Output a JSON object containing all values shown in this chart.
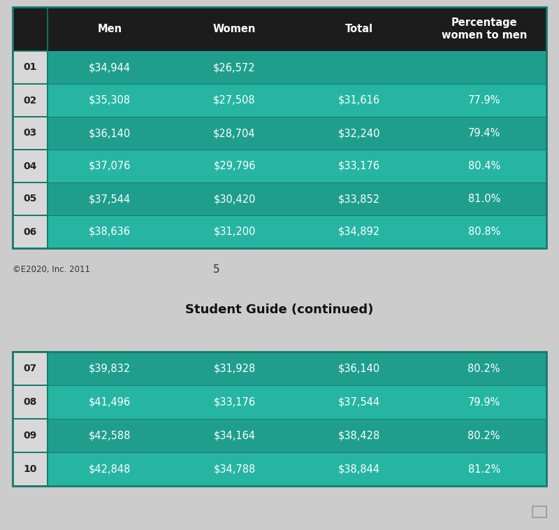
{
  "header": [
    "Men",
    "Women",
    "Total",
    "Percentage\nwomen to men"
  ],
  "table1_rows": [
    [
      "01",
      "$34,944",
      "$26,572",
      "",
      ""
    ],
    [
      "02",
      "$35,308",
      "$27,508",
      "$31,616",
      "77.9%"
    ],
    [
      "03",
      "$36,140",
      "$28,704",
      "$32,240",
      "79.4%"
    ],
    [
      "04",
      "$37,076",
      "$29,796",
      "$33,176",
      "80.4%"
    ],
    [
      "05",
      "$37,544",
      "$30,420",
      "$33,852",
      "81.0%"
    ],
    [
      "06",
      "$38,636",
      "$31,200",
      "$34,892",
      "80.8%"
    ]
  ],
  "table2_rows": [
    [
      "07",
      "$39,832",
      "$31,928",
      "$36,140",
      "80.2%"
    ],
    [
      "08",
      "$41,496",
      "$33,176",
      "$37,544",
      "79.9%"
    ],
    [
      "09",
      "$42,588",
      "$34,164",
      "$38,428",
      "80.2%"
    ],
    [
      "10",
      "$42,848",
      "$34,788",
      "$38,844",
      "81.2%"
    ]
  ],
  "footer_text": "©E2020, Inc. 2011",
  "page_number": "5",
  "subtitle": "Student Guide (continued)",
  "bg_color": "#cccccc",
  "header_bg": "#1c1c1c",
  "header_text_color": "#ffffff",
  "row_color_even": "#1f9e8e",
  "row_color_odd": "#26b5a3",
  "row_text_color": "#ffffff",
  "label_bg": "#d8d8d8",
  "label_text_color": "#222222",
  "border_color": "#157a6e",
  "footer_color": "#333333",
  "subtitle_color": "#111111"
}
